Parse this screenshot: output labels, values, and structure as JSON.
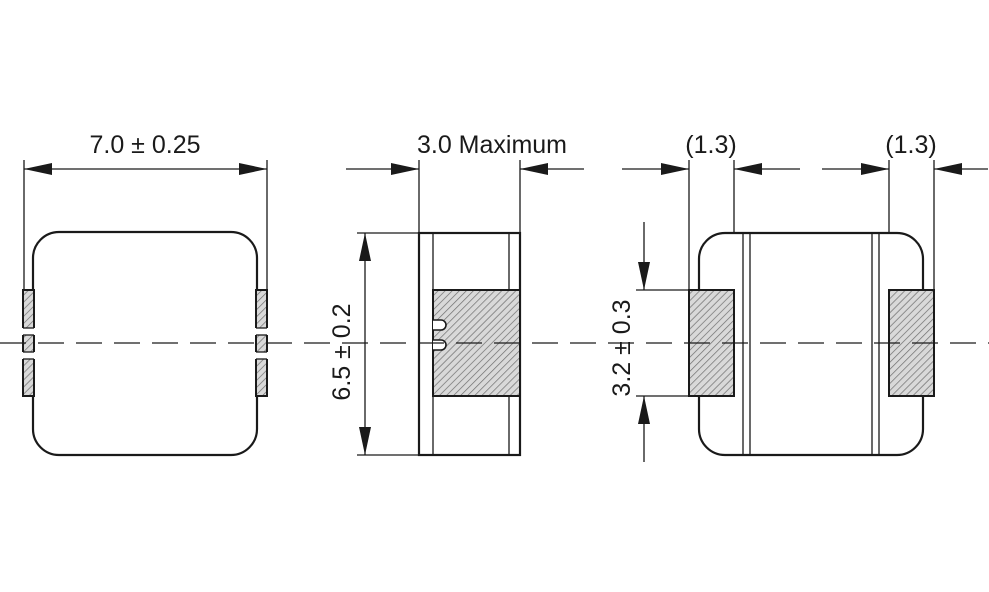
{
  "dimensions": {
    "top_width": "7.0 ± 0.25",
    "side_thickness": "3.0 Maximum",
    "side_height": "6.5 ± 0.2",
    "terminal_left": "(1.3)",
    "terminal_right": "(1.3)",
    "terminal_height": "3.2 ± 0.3"
  },
  "colors": {
    "line": "#1a1a1a",
    "hatch_fill": "#d9d9d9",
    "background": "#ffffff"
  }
}
